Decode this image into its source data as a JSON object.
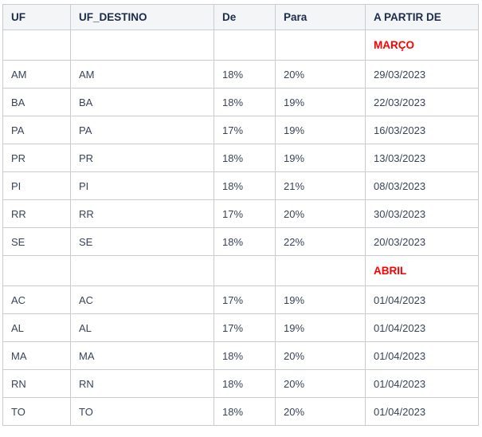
{
  "chart_data": {
    "type": "table",
    "columns": [
      "UF",
      "UF_DESTINO",
      "De",
      "Para",
      "A PARTIR DE"
    ],
    "sections": [
      {
        "month": "MARÇO",
        "rows": [
          [
            "AM",
            "AM",
            "18%",
            "20%",
            "29/03/2023"
          ],
          [
            "BA",
            "BA",
            "18%",
            "19%",
            "22/03/2023"
          ],
          [
            "PA",
            "PA",
            "17%",
            "19%",
            "16/03/2023"
          ],
          [
            "PR",
            "PR",
            "18%",
            "19%",
            "13/03/2023"
          ],
          [
            "PI",
            "PI",
            "18%",
            "21%",
            "08/03/2023"
          ],
          [
            "RR",
            "RR",
            "17%",
            "20%",
            "30/03/2023"
          ],
          [
            "SE",
            "SE",
            "18%",
            "22%",
            "20/03/2023"
          ]
        ]
      },
      {
        "month": "ABRIL",
        "rows": [
          [
            "AC",
            "AC",
            "17%",
            "19%",
            "01/04/2023"
          ],
          [
            "AL",
            "AL",
            "17%",
            "19%",
            "01/04/2023"
          ],
          [
            "MA",
            "MA",
            "18%",
            "20%",
            "01/04/2023"
          ],
          [
            "RN",
            "RN",
            "18%",
            "20%",
            "01/04/2023"
          ],
          [
            "TO",
            "TO",
            "18%",
            "20%",
            "01/04/2023"
          ]
        ]
      }
    ],
    "colors": {
      "month_label": "#ff0000",
      "header_text": "#1c2b4a",
      "body_text": "#394458",
      "border": "#c9cdd3",
      "header_background": "#f4f5f6"
    }
  }
}
